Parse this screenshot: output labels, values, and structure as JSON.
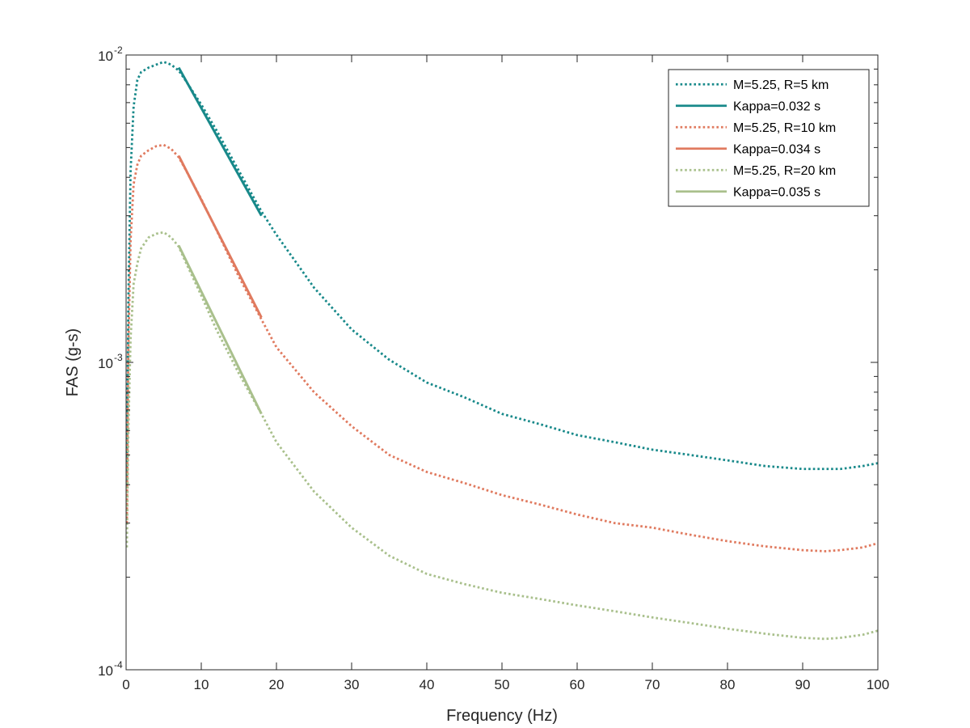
{
  "chart_data": {
    "type": "line",
    "title": "",
    "xlabel": "Frequency (Hz)",
    "ylabel": "FAS (g-s)",
    "xlim": [
      0,
      100
    ],
    "ylim": [
      0.0001,
      0.01
    ],
    "yscale": "log",
    "grid": false,
    "legend_position": "top-right",
    "x_ticks": [
      {
        "value": 0,
        "label": "0"
      },
      {
        "value": 10,
        "label": "10"
      },
      {
        "value": 20,
        "label": "20"
      },
      {
        "value": 30,
        "label": "30"
      },
      {
        "value": 40,
        "label": "40"
      },
      {
        "value": 50,
        "label": "50"
      },
      {
        "value": 60,
        "label": "60"
      },
      {
        "value": 70,
        "label": "70"
      },
      {
        "value": 80,
        "label": "80"
      },
      {
        "value": 90,
        "label": "90"
      },
      {
        "value": 100,
        "label": "100"
      }
    ],
    "y_ticks": [
      {
        "value": 0.0001,
        "base": "10",
        "exp": "-4"
      },
      {
        "value": 0.001,
        "base": "10",
        "exp": "-3"
      },
      {
        "value": 0.01,
        "base": "10",
        "exp": "-2"
      }
    ],
    "series": [
      {
        "name": "M=5.25, R=5 km",
        "color": "#18898A",
        "style": "dotted",
        "x": [
          0.1,
          0.3,
          0.6,
          1.0,
          1.5,
          2,
          3,
          4,
          5,
          6,
          7,
          8,
          10,
          12,
          15,
          18,
          20,
          25,
          30,
          35,
          40,
          45,
          50,
          55,
          60,
          65,
          70,
          75,
          80,
          85,
          90,
          93,
          95,
          98,
          100
        ],
        "y": [
          0.0004,
          0.0016,
          0.0042,
          0.0068,
          0.0083,
          0.0088,
          0.0091,
          0.0093,
          0.0095,
          0.0093,
          0.0089,
          0.0082,
          0.0069,
          0.0057,
          0.0042,
          0.0031,
          0.0026,
          0.00175,
          0.00128,
          0.00102,
          0.00086,
          0.00077,
          0.00068,
          0.00063,
          0.00058,
          0.00055,
          0.00052,
          0.0005,
          0.00048,
          0.00046,
          0.00045,
          0.00045,
          0.00045,
          0.00046,
          0.00047
        ]
      },
      {
        "name": "Kappa=0.032 s",
        "color": "#18898A",
        "style": "solid",
        "x": [
          7,
          18
        ],
        "y": [
          0.0091,
          0.003
        ]
      },
      {
        "name": "M=5.25, R=10 km",
        "color": "#E07A5F",
        "style": "dotted",
        "x": [
          0.1,
          0.3,
          0.6,
          1.0,
          1.5,
          2,
          3,
          4,
          5,
          6,
          7,
          8,
          10,
          12,
          15,
          18,
          20,
          25,
          30,
          35,
          40,
          45,
          50,
          55,
          60,
          65,
          70,
          75,
          80,
          85,
          90,
          93,
          95,
          98,
          100
        ],
        "y": [
          0.0003,
          0.0011,
          0.0025,
          0.0038,
          0.0044,
          0.0047,
          0.0049,
          0.00505,
          0.0051,
          0.00495,
          0.00465,
          0.0042,
          0.0034,
          0.0027,
          0.0019,
          0.00138,
          0.00112,
          0.0008,
          0.00062,
          0.0005,
          0.00044,
          0.000405,
          0.00037,
          0.000345,
          0.00032,
          0.0003,
          0.00029,
          0.000275,
          0.000262,
          0.000252,
          0.000245,
          0.000243,
          0.000245,
          0.00025,
          0.000258
        ]
      },
      {
        "name": "Kappa=0.034 s",
        "color": "#E07A5F",
        "style": "solid",
        "x": [
          7,
          18
        ],
        "y": [
          0.0047,
          0.0014
        ]
      },
      {
        "name": "M=5.25, R=20 km",
        "color": "#A9C08C",
        "style": "dotted",
        "x": [
          0.1,
          0.3,
          0.6,
          1.0,
          1.5,
          2,
          3,
          4,
          5,
          6,
          7,
          8,
          10,
          12,
          15,
          18,
          20,
          25,
          30,
          35,
          40,
          45,
          50,
          55,
          60,
          65,
          70,
          75,
          80,
          85,
          90,
          93,
          95,
          98,
          100
        ],
        "y": [
          0.00025,
          0.0006,
          0.0012,
          0.0018,
          0.0021,
          0.00235,
          0.00255,
          0.00262,
          0.00265,
          0.00255,
          0.00238,
          0.0021,
          0.00165,
          0.00128,
          0.00092,
          0.00068,
          0.00055,
          0.00038,
          0.00029,
          0.000235,
          0.000205,
          0.00019,
          0.000178,
          0.00017,
          0.000162,
          0.000155,
          0.000148,
          0.000142,
          0.000136,
          0.000131,
          0.000127,
          0.000126,
          0.000127,
          0.00013,
          0.000134
        ]
      },
      {
        "name": "Kappa=0.035 s",
        "color": "#A9C08C",
        "style": "solid",
        "x": [
          7,
          18
        ],
        "y": [
          0.0024,
          0.00068
        ]
      }
    ]
  }
}
